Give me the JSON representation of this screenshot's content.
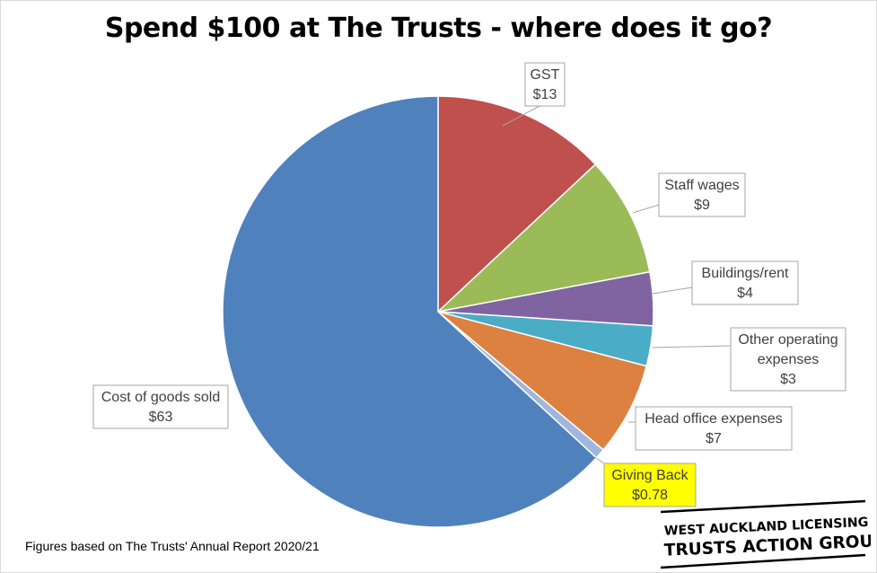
{
  "chart_data": {
    "type": "pie",
    "title": "Spend $100 at The Trusts - where does it go?",
    "slices": [
      {
        "label": "GST",
        "value_label": "$13",
        "value": 13,
        "color": "#c0504d"
      },
      {
        "label": "Staff wages",
        "value_label": "$9",
        "value": 9,
        "color": "#9bbb59"
      },
      {
        "label": "Buildings/rent",
        "value_label": "$4",
        "value": 4,
        "color": "#8064a2"
      },
      {
        "label": "Other operating expenses",
        "label_lines": [
          "Other operating",
          "expenses"
        ],
        "value_label": "$3",
        "value": 3,
        "color": "#4bacc6"
      },
      {
        "label": "Head office expenses",
        "value_label": "$7",
        "value": 7,
        "color": "#dd8140"
      },
      {
        "label": "Giving Back",
        "value_label": "$0.78",
        "value": 0.78,
        "color": "#9fb6dd",
        "highlight": "#ffff00"
      },
      {
        "label": "Cost of goods sold",
        "value_label": "$63",
        "value": 63,
        "color": "#4f81bd"
      }
    ]
  },
  "footnote": "Figures based on The Trusts' Annual Report 2020/21",
  "logo": {
    "line1": "WEST AUCKLAND LICENSING",
    "line2": "TRUSTS ACTION GROUP"
  }
}
